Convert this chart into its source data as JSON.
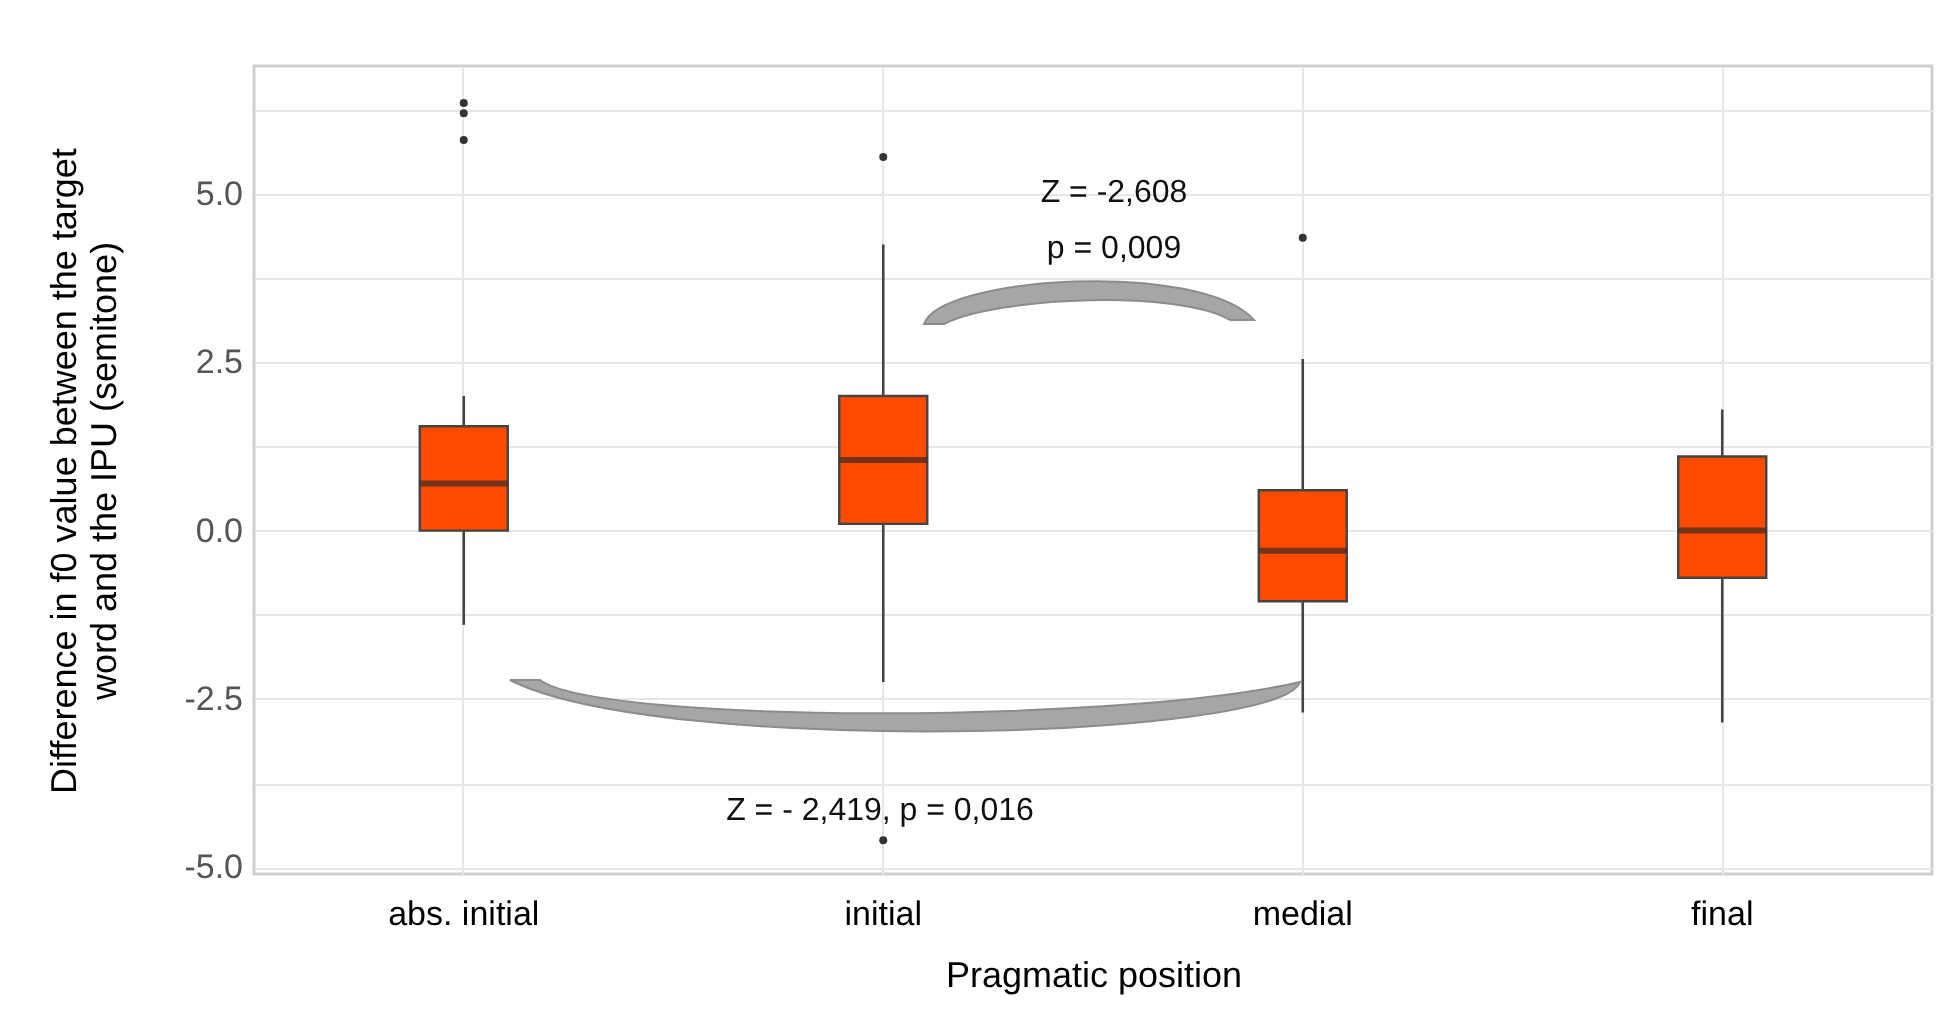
{
  "chart_data": {
    "type": "box",
    "xlabel": "Pragmatic position",
    "ylabel": "Difference in f0 value between the target word and the IPU (semitone)",
    "categories": [
      "abs. initial",
      "initial",
      "medial",
      "final"
    ],
    "color": "#ff4b00",
    "boxes": [
      {
        "low": -1.4,
        "q1": 0.0,
        "median": 0.7,
        "q3": 1.55,
        "high": 2.0,
        "outliers": [
          6.35,
          6.2,
          5.8
        ]
      },
      {
        "low": -2.25,
        "q1": 0.1,
        "median": 1.05,
        "q3": 2.0,
        "high": 4.25,
        "outliers": [
          5.55,
          -4.6
        ]
      },
      {
        "low": -2.7,
        "q1": -1.05,
        "median": -0.3,
        "q3": 0.6,
        "high": 2.55,
        "outliers": [
          4.35
        ]
      },
      {
        "low": -2.85,
        "q1": -0.7,
        "median": 0.0,
        "q3": 1.1,
        "high": 1.8
      }
    ],
    "ylim": [
      -5.1,
      6.9
    ],
    "yticks": [
      {
        "value": -5,
        "label": "-5.0"
      },
      {
        "value": -3.75,
        "label": null
      },
      {
        "value": -2.5,
        "label": "-2.5"
      },
      {
        "value": -1.25,
        "label": null
      },
      {
        "value": 0,
        "label": "0.0"
      },
      {
        "value": 1.25,
        "label": null
      },
      {
        "value": 2.5,
        "label": "2.5"
      },
      {
        "value": 3.75,
        "label": null
      },
      {
        "value": 5,
        "label": "5.0"
      },
      {
        "value": 6.25,
        "label": null
      }
    ],
    "grid": true,
    "annotations": [
      "Z = -2,608\np = 0,009",
      "Z = - 2,419, p = 0,016"
    ]
  }
}
